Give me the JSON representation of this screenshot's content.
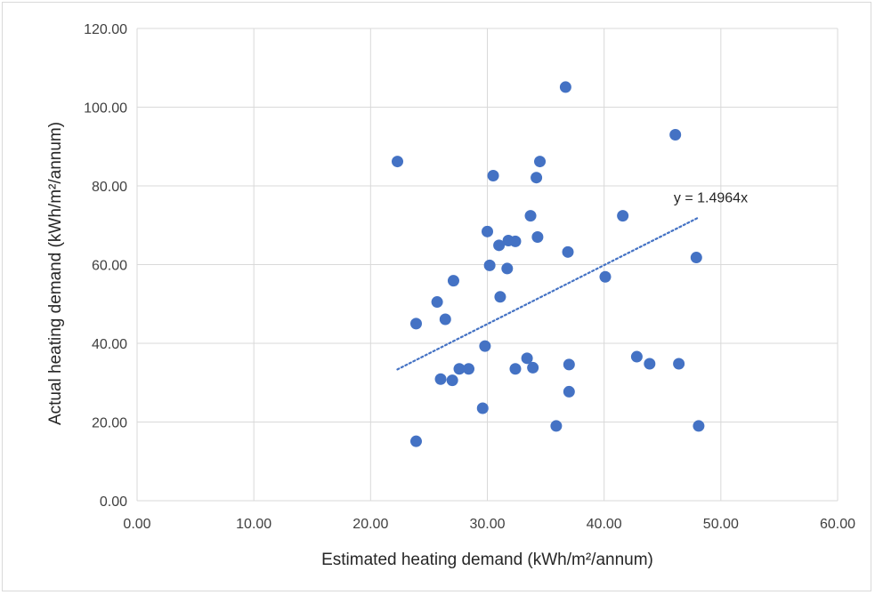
{
  "chart_data": {
    "type": "scatter",
    "title": "",
    "xlabel": "Estimated heating demand (kWh/m²/annum)",
    "ylabel": "Actual heating demand (kWh/m²/annum)",
    "xlim": [
      0,
      60
    ],
    "ylim": [
      0,
      120
    ],
    "x_ticks": [
      "0.00",
      "10.00",
      "20.00",
      "30.00",
      "40.00",
      "50.00",
      "60.00"
    ],
    "y_ticks": [
      "0.00",
      "20.00",
      "40.00",
      "60.00",
      "80.00",
      "100.00",
      "120.00"
    ],
    "grid": true,
    "legend": "none",
    "marker_color": "#4472c4",
    "series": [
      {
        "points": [
          {
            "x": 22.3,
            "y": 86.2
          },
          {
            "x": 23.9,
            "y": 15.1
          },
          {
            "x": 23.9,
            "y": 45.0
          },
          {
            "x": 25.7,
            "y": 50.5
          },
          {
            "x": 26.0,
            "y": 30.9
          },
          {
            "x": 26.4,
            "y": 46.1
          },
          {
            "x": 27.0,
            "y": 30.6
          },
          {
            "x": 27.1,
            "y": 55.9
          },
          {
            "x": 27.6,
            "y": 33.5
          },
          {
            "x": 28.4,
            "y": 33.5
          },
          {
            "x": 29.6,
            "y": 23.5
          },
          {
            "x": 29.8,
            "y": 39.3
          },
          {
            "x": 30.0,
            "y": 68.4
          },
          {
            "x": 30.2,
            "y": 59.8
          },
          {
            "x": 30.5,
            "y": 82.6
          },
          {
            "x": 31.0,
            "y": 64.9
          },
          {
            "x": 31.1,
            "y": 51.8
          },
          {
            "x": 31.7,
            "y": 59.0
          },
          {
            "x": 31.8,
            "y": 66.1
          },
          {
            "x": 32.4,
            "y": 65.9
          },
          {
            "x": 32.4,
            "y": 33.5
          },
          {
            "x": 33.4,
            "y": 36.2
          },
          {
            "x": 33.7,
            "y": 72.4
          },
          {
            "x": 33.9,
            "y": 33.8
          },
          {
            "x": 34.2,
            "y": 82.1
          },
          {
            "x": 34.3,
            "y": 67.0
          },
          {
            "x": 34.5,
            "y": 86.2
          },
          {
            "x": 35.9,
            "y": 19.0
          },
          {
            "x": 36.7,
            "y": 105.1
          },
          {
            "x": 36.9,
            "y": 63.2
          },
          {
            "x": 37.0,
            "y": 34.6
          },
          {
            "x": 37.0,
            "y": 27.7
          },
          {
            "x": 40.1,
            "y": 56.9
          },
          {
            "x": 41.6,
            "y": 72.4
          },
          {
            "x": 42.8,
            "y": 36.6
          },
          {
            "x": 43.9,
            "y": 34.8
          },
          {
            "x": 46.1,
            "y": 93.0
          },
          {
            "x": 46.4,
            "y": 34.8
          },
          {
            "x": 47.9,
            "y": 61.8
          },
          {
            "x": 48.1,
            "y": 19.0
          }
        ]
      }
    ],
    "trendline": {
      "type": "linear-through-origin",
      "slope": 1.4964,
      "x_start": 22.3,
      "x_end": 48.1,
      "label": "y = 1.4964x",
      "color": "#4472c4"
    }
  }
}
